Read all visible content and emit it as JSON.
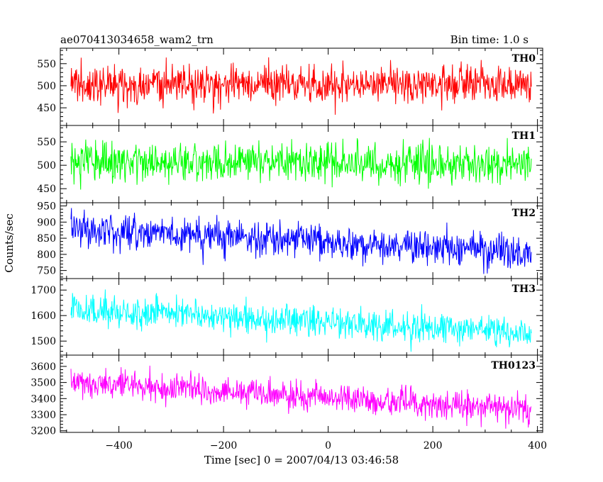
{
  "header": {
    "title": "ae070413034658_wam2_trn",
    "bin_time": "Bin time: 1.0 s"
  },
  "chart_data": {
    "type": "line",
    "xlabel": "Time [sec] 0 = 2007/04/13 03:46:58",
    "ylabel": "Counts/sec",
    "xlim": [
      -512,
      410
    ],
    "x_ticks": [
      -400,
      -200,
      0,
      200,
      400
    ],
    "x_tick_labels": [
      "−400",
      "−200",
      "0",
      "200",
      "400"
    ],
    "panels": [
      {
        "name": "TH0",
        "color": "#ff0000",
        "ylim": [
          410,
          585
        ],
        "y_ticks": [
          450,
          500,
          550
        ],
        "start_mean": 502,
        "end_mean": 505,
        "amplitude": 40
      },
      {
        "name": "TH1",
        "color": "#00ff00",
        "ylim": [
          420,
          585
        ],
        "y_ticks": [
          450,
          500,
          550
        ],
        "start_mean": 508,
        "end_mean": 502,
        "amplitude": 38
      },
      {
        "name": "TH2",
        "color": "#0000ff",
        "ylim": [
          725,
          960
        ],
        "y_ticks": [
          750,
          800,
          850,
          900,
          950
        ],
        "start_mean": 880,
        "end_mean": 805,
        "amplitude": 48
      },
      {
        "name": "TH3",
        "color": "#00ffff",
        "ylim": [
          1445,
          1745
        ],
        "y_ticks": [
          1500,
          1600,
          1700
        ],
        "start_mean": 1625,
        "end_mean": 1535,
        "amplitude": 55
      },
      {
        "name": "TH0123",
        "color": "#ff00ff",
        "ylim": [
          3190,
          3670
        ],
        "y_ticks": [
          3200,
          3300,
          3400,
          3500,
          3600
        ],
        "start_mean": 3500,
        "end_mean": 3335,
        "amplitude": 80
      }
    ]
  }
}
